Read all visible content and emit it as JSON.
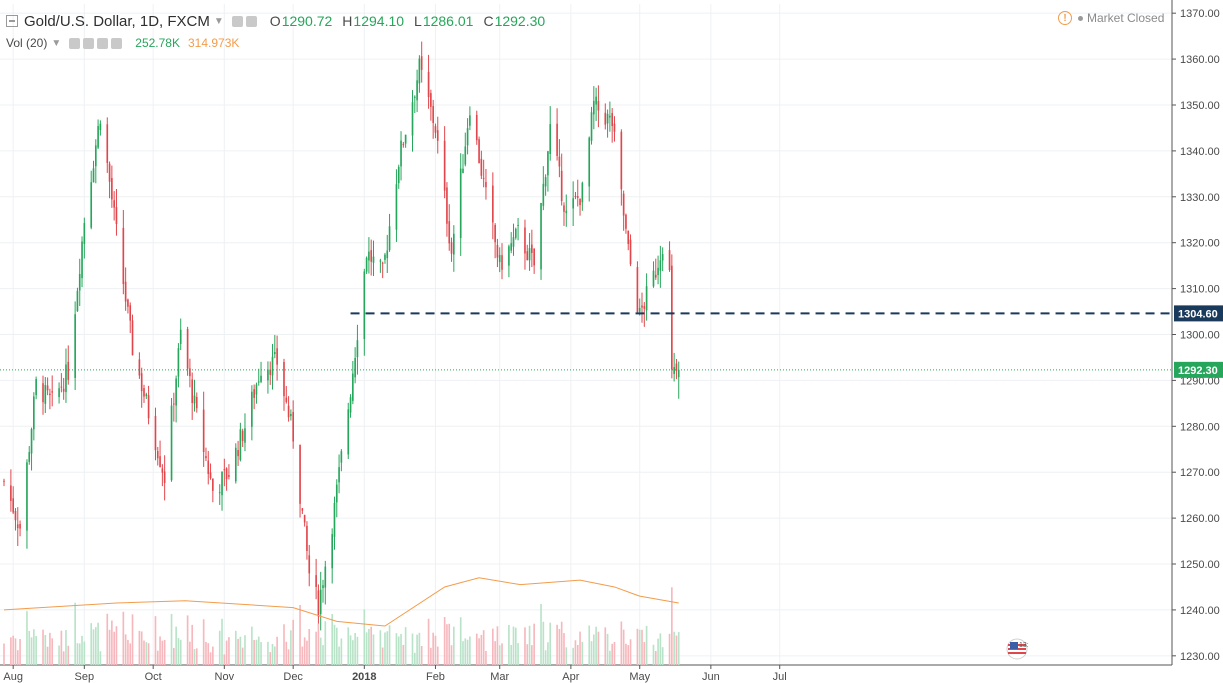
{
  "header": {
    "symbol_title": "Gold/U.S. Dollar, 1D, FXCM",
    "open_label": "O",
    "open_value": "1290.72",
    "high_label": "H",
    "high_value": "1294.10",
    "low_label": "L",
    "low_value": "1286.01",
    "close_label": "C",
    "close_value": "1292.30",
    "volume_label": "Vol (20)",
    "volume_value": "252.78K",
    "volume_ma_value": "314.973K",
    "market_status": "Market Closed",
    "volume_badge": "13:"
  },
  "colors": {
    "up": "#26a65b",
    "down": "#e0474c",
    "volume_up": "#b9e3c8",
    "volume_down": "#f6b8bd",
    "volume_ma": "#f39c4b",
    "level_line": "#1a3a5c",
    "last_price": "#26a65b",
    "grid": "#eef1f4"
  },
  "chart_data": {
    "type": "candlestick",
    "title": "Gold/U.S. Dollar, 1D, FXCM",
    "xlabel": "",
    "ylabel": "",
    "ylim": [
      1228,
      1372
    ],
    "y_ticks": [
      "1230.00",
      "1240.00",
      "1250.00",
      "1260.00",
      "1270.00",
      "1280.00",
      "1290.00",
      "1300.00",
      "1310.00",
      "1320.00",
      "1330.00",
      "1340.00",
      "1350.00",
      "1360.00",
      "1370.00"
    ],
    "x_ticks": [
      "Aug",
      "Sep",
      "Oct",
      "Nov",
      "Dec",
      "2018",
      "Feb",
      "Mar",
      "Apr",
      "May",
      "Jun",
      "Jul"
    ],
    "grid": true,
    "horizontal_level": 1304.6,
    "horizontal_level_label": "1304.60",
    "last_price": 1292.3,
    "last_price_label": "1292.30",
    "checkpoints": [
      {
        "date": "2017-07-28",
        "close": 1268
      },
      {
        "date": "2017-08-04",
        "close": 1258
      },
      {
        "date": "2017-08-11",
        "close": 1289
      },
      {
        "date": "2017-08-18",
        "close": 1285
      },
      {
        "date": "2017-08-25",
        "close": 1292
      },
      {
        "date": "2017-09-01",
        "close": 1325
      },
      {
        "date": "2017-09-08",
        "close": 1348
      },
      {
        "date": "2017-09-15",
        "close": 1322
      },
      {
        "date": "2017-09-22",
        "close": 1297
      },
      {
        "date": "2017-09-29",
        "close": 1283
      },
      {
        "date": "2017-10-06",
        "close": 1269
      },
      {
        "date": "2017-10-13",
        "close": 1300
      },
      {
        "date": "2017-10-20",
        "close": 1282
      },
      {
        "date": "2017-10-27",
        "close": 1266
      },
      {
        "date": "2017-11-03",
        "close": 1270
      },
      {
        "date": "2017-11-10",
        "close": 1280
      },
      {
        "date": "2017-11-17",
        "close": 1293
      },
      {
        "date": "2017-11-24",
        "close": 1294
      },
      {
        "date": "2017-12-01",
        "close": 1278
      },
      {
        "date": "2017-12-08",
        "close": 1248
      },
      {
        "date": "2017-12-12",
        "close": 1241
      },
      {
        "date": "2017-12-19",
        "close": 1262
      },
      {
        "date": "2017-12-26",
        "close": 1288
      },
      {
        "date": "2018-01-02",
        "close": 1318
      },
      {
        "date": "2018-01-09",
        "close": 1313
      },
      {
        "date": "2018-01-16",
        "close": 1338
      },
      {
        "date": "2018-01-25",
        "close": 1358
      },
      {
        "date": "2018-02-01",
        "close": 1345
      },
      {
        "date": "2018-02-08",
        "close": 1318
      },
      {
        "date": "2018-02-16",
        "close": 1350
      },
      {
        "date": "2018-02-23",
        "close": 1330
      },
      {
        "date": "2018-03-01",
        "close": 1315
      },
      {
        "date": "2018-03-09",
        "close": 1322
      },
      {
        "date": "2018-03-16",
        "close": 1315
      },
      {
        "date": "2018-03-23",
        "close": 1345
      },
      {
        "date": "2018-03-30",
        "close": 1326
      },
      {
        "date": "2018-04-06",
        "close": 1331
      },
      {
        "date": "2018-04-11",
        "close": 1350
      },
      {
        "date": "2018-04-19",
        "close": 1346
      },
      {
        "date": "2018-04-26",
        "close": 1318
      },
      {
        "date": "2018-05-01",
        "close": 1304
      },
      {
        "date": "2018-05-08",
        "close": 1314
      },
      {
        "date": "2018-05-11",
        "close": 1320
      },
      {
        "date": "2018-05-14",
        "close": 1313
      },
      {
        "date": "2018-05-15",
        "close": 1291
      },
      {
        "date": "2018-05-18",
        "close": 1292.3
      }
    ],
    "volume_ma_series": [
      {
        "date": "2017-07-28",
        "value": 1240
      },
      {
        "date": "2017-09-15",
        "value": 1241.5
      },
      {
        "date": "2017-10-15",
        "value": 1242
      },
      {
        "date": "2017-12-01",
        "value": 1240.5
      },
      {
        "date": "2017-12-20",
        "value": 1237.5
      },
      {
        "date": "2018-01-10",
        "value": 1236.5
      },
      {
        "date": "2018-02-05",
        "value": 1245
      },
      {
        "date": "2018-02-20",
        "value": 1247
      },
      {
        "date": "2018-03-10",
        "value": 1245.5
      },
      {
        "date": "2018-04-05",
        "value": 1246.5
      },
      {
        "date": "2018-04-20",
        "value": 1245
      },
      {
        "date": "2018-05-01",
        "value": 1243
      },
      {
        "date": "2018-05-18",
        "value": 1241.5
      }
    ]
  }
}
